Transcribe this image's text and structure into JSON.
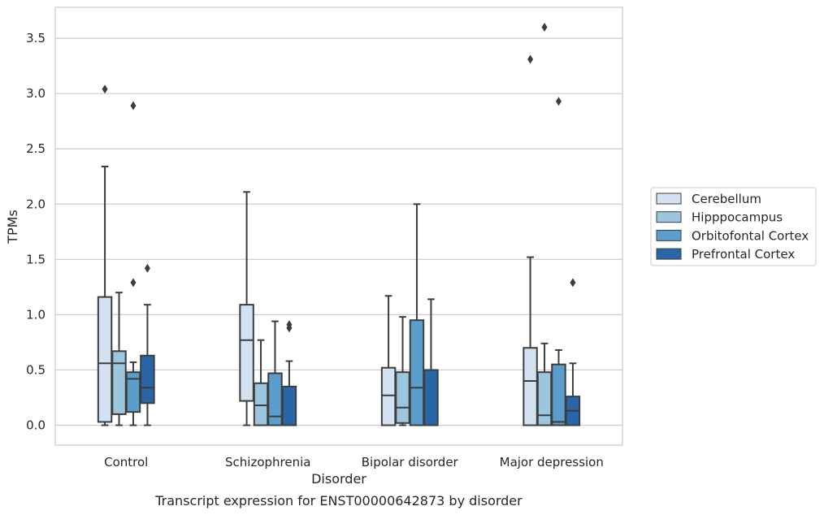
{
  "chart_data": {
    "type": "box",
    "caption": "Transcript expression for ENST00000642873 by disorder",
    "xlabel": "Disorder",
    "ylabel": "TPMs",
    "ylim": [
      -0.18,
      3.78
    ],
    "yticks": [
      0.0,
      0.5,
      1.0,
      1.5,
      2.0,
      2.5,
      3.0,
      3.5
    ],
    "ytick_labels": [
      "0.0",
      "0.5",
      "1.0",
      "1.5",
      "2.0",
      "2.5",
      "3.0",
      "3.5"
    ],
    "grid": "horizontal",
    "legend_position": "right",
    "categories": [
      "Control",
      "Schizophrenia",
      "Bipolar disorder",
      "Major depression"
    ],
    "series": [
      {
        "name": "Cerebellum",
        "color": "#d3e2f1",
        "boxes": [
          {
            "whisker_low": 0.0,
            "q1": 0.03,
            "median": 0.56,
            "q3": 1.16,
            "whisker_high": 2.34,
            "outliers": [
              3.04
            ]
          },
          {
            "whisker_low": 0.0,
            "q1": 0.22,
            "median": 0.77,
            "q3": 1.09,
            "whisker_high": 2.11,
            "outliers": []
          },
          {
            "whisker_low": 0.0,
            "q1": 0.0,
            "median": 0.27,
            "q3": 0.52,
            "whisker_high": 1.17,
            "outliers": []
          },
          {
            "whisker_low": 0.0,
            "q1": 0.0,
            "median": 0.4,
            "q3": 0.7,
            "whisker_high": 1.52,
            "outliers": [
              3.31
            ]
          }
        ]
      },
      {
        "name": "Hipppocampus",
        "color": "#9cc5de",
        "boxes": [
          {
            "whisker_low": 0.0,
            "q1": 0.1,
            "median": 0.56,
            "q3": 0.67,
            "whisker_high": 1.2,
            "outliers": []
          },
          {
            "whisker_low": 0.0,
            "q1": 0.0,
            "median": 0.18,
            "q3": 0.38,
            "whisker_high": 0.77,
            "outliers": []
          },
          {
            "whisker_low": 0.0,
            "q1": 0.02,
            "median": 0.16,
            "q3": 0.48,
            "whisker_high": 0.98,
            "outliers": []
          },
          {
            "whisker_low": 0.0,
            "q1": 0.0,
            "median": 0.09,
            "q3": 0.48,
            "whisker_high": 0.74,
            "outliers": [
              3.6
            ]
          }
        ]
      },
      {
        "name": "Orbitofontal Cortex",
        "color": "#5b9dcb",
        "boxes": [
          {
            "whisker_low": 0.0,
            "q1": 0.12,
            "median": 0.42,
            "q3": 0.48,
            "whisker_high": 0.57,
            "outliers": [
              1.29,
              2.89
            ]
          },
          {
            "whisker_low": 0.0,
            "q1": 0.0,
            "median": 0.08,
            "q3": 0.47,
            "whisker_high": 0.94,
            "outliers": []
          },
          {
            "whisker_low": 0.0,
            "q1": 0.0,
            "median": 0.34,
            "q3": 0.95,
            "whisker_high": 2.0,
            "outliers": []
          },
          {
            "whisker_low": 0.0,
            "q1": 0.0,
            "median": 0.03,
            "q3": 0.55,
            "whisker_high": 0.68,
            "outliers": [
              2.93
            ]
          }
        ]
      },
      {
        "name": "Prefrontal Cortex",
        "color": "#2866a8",
        "boxes": [
          {
            "whisker_low": 0.0,
            "q1": 0.2,
            "median": 0.34,
            "q3": 0.63,
            "whisker_high": 1.09,
            "outliers": [
              1.42
            ]
          },
          {
            "whisker_low": 0.0,
            "q1": 0.0,
            "median": 0.0,
            "q3": 0.35,
            "whisker_high": 0.58,
            "outliers": [
              0.88,
              0.91
            ]
          },
          {
            "whisker_low": 0.0,
            "q1": 0.0,
            "median": 0.0,
            "q3": 0.5,
            "whisker_high": 1.14,
            "outliers": []
          },
          {
            "whisker_low": 0.0,
            "q1": 0.0,
            "median": 0.13,
            "q3": 0.26,
            "whisker_high": 0.56,
            "outliers": [
              1.29
            ]
          }
        ]
      }
    ]
  }
}
